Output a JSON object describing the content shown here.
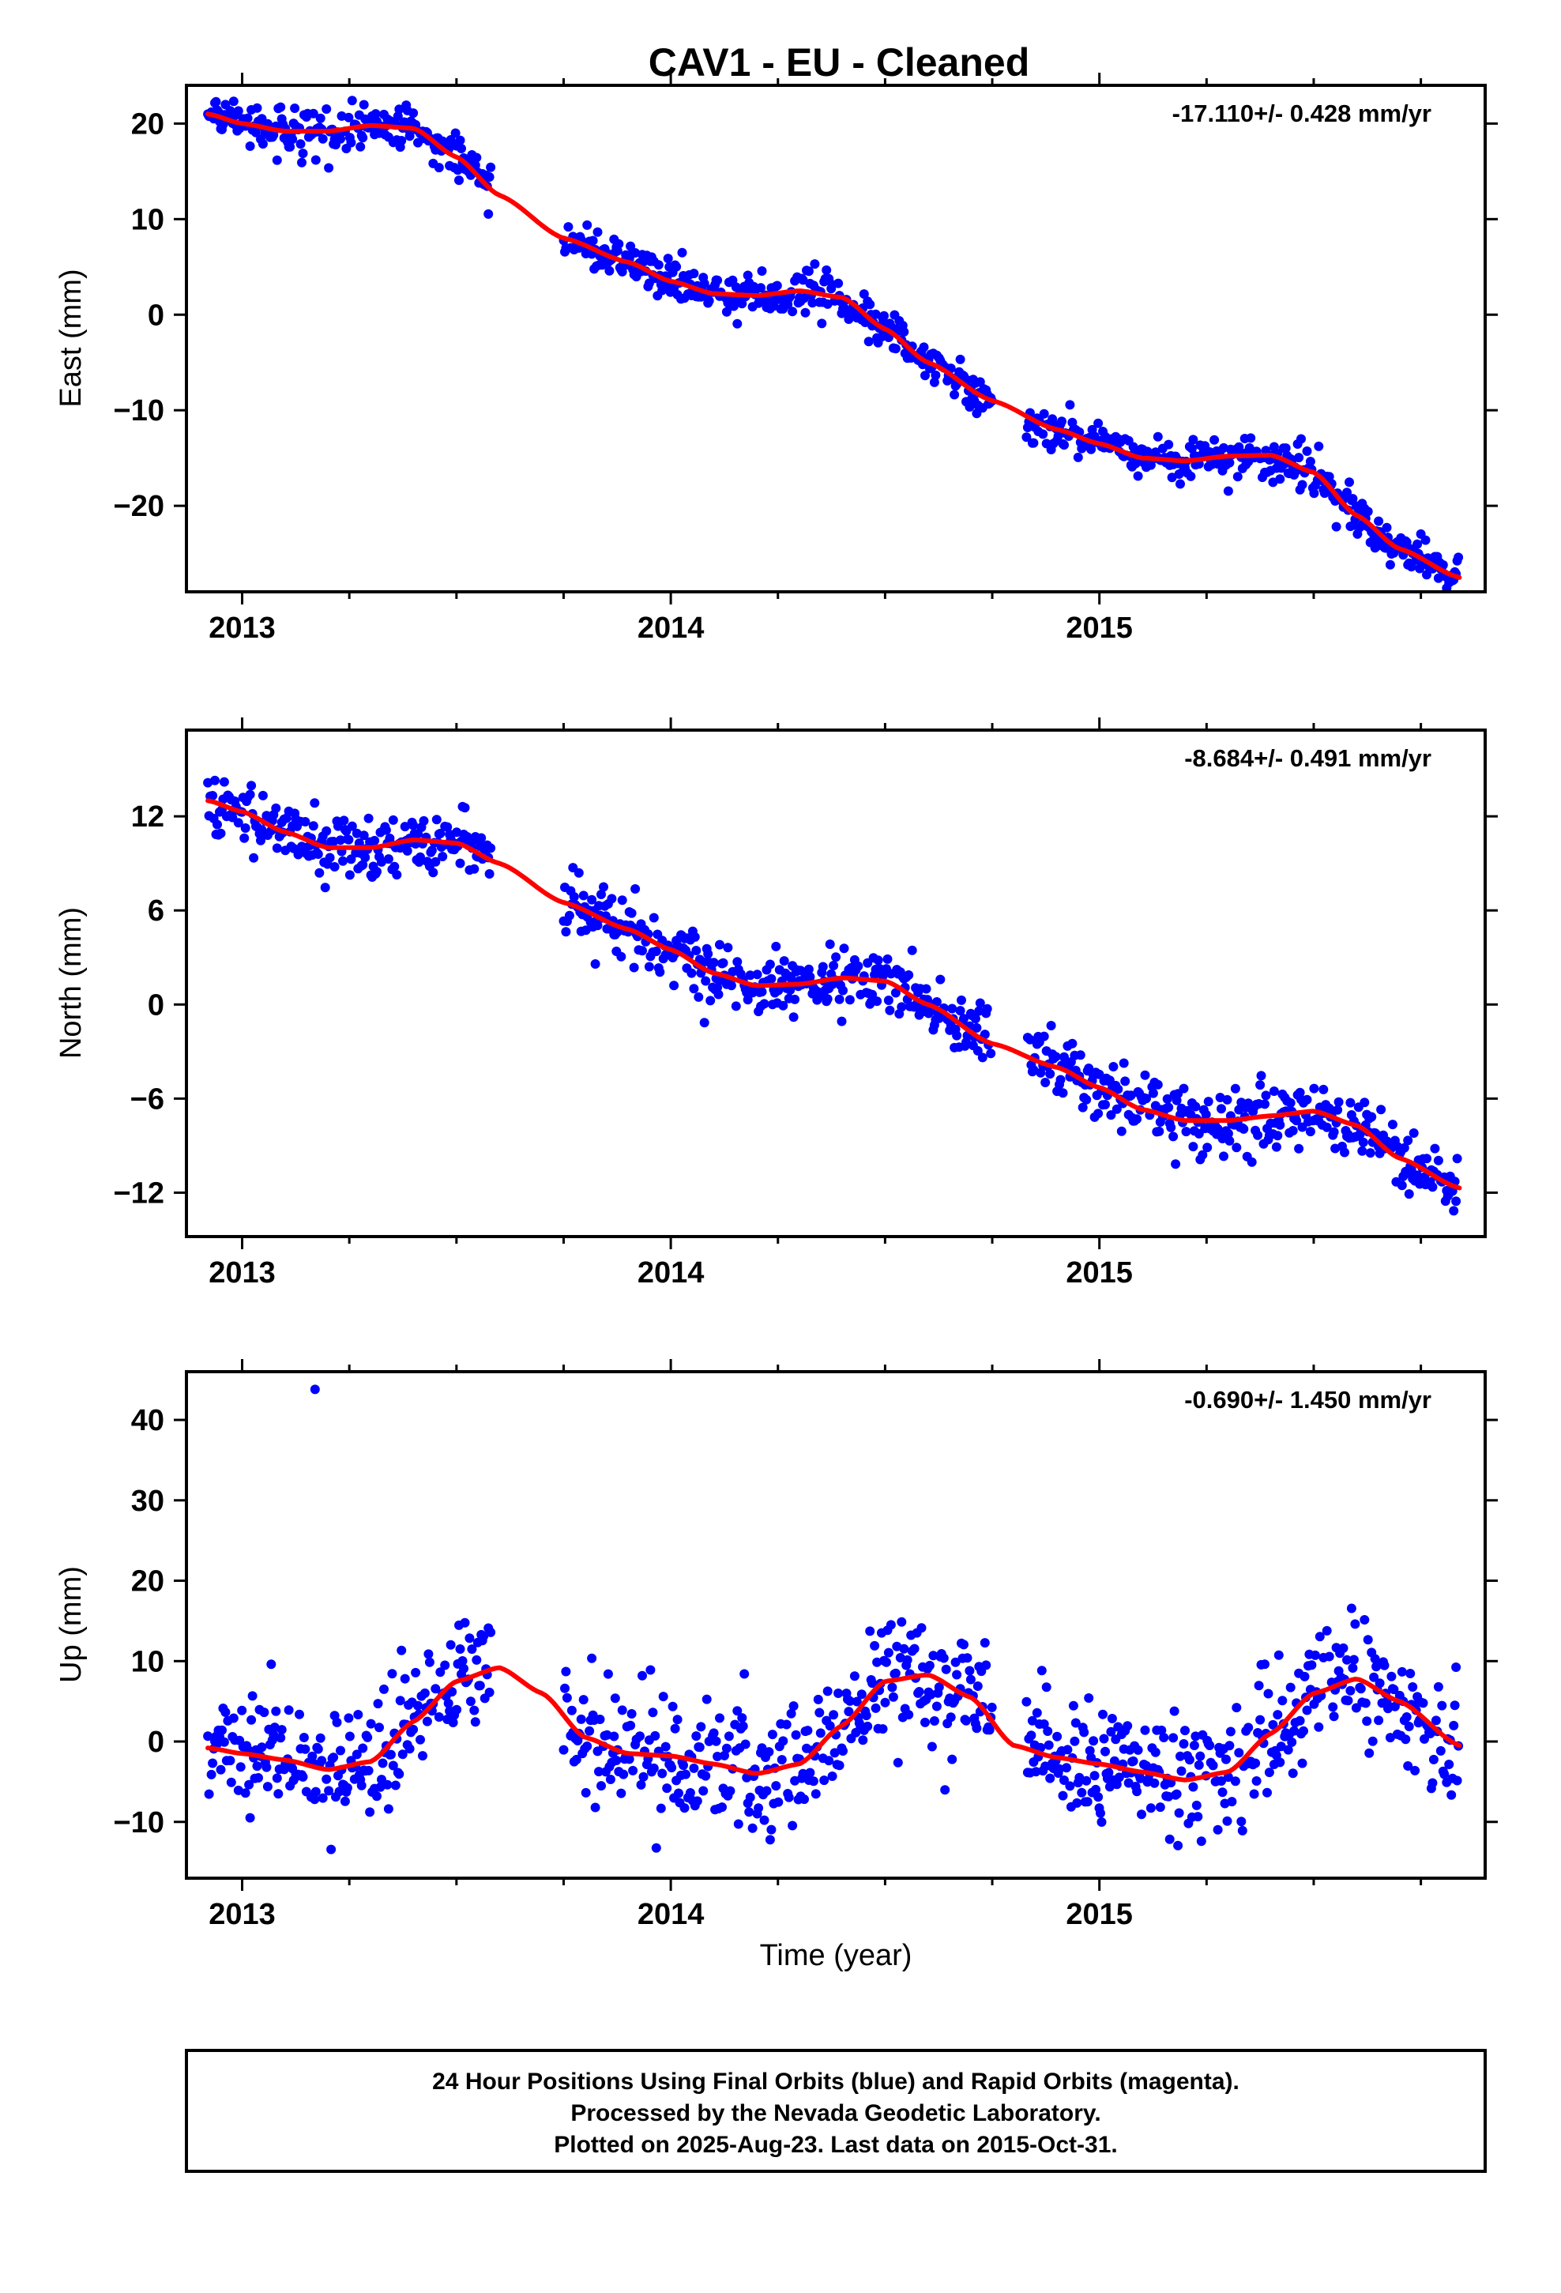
{
  "title": "CAV1  - EU - Cleaned",
  "xlabel": "Time (year)",
  "colors": {
    "points": "#0000ff",
    "fit": "#ff0000",
    "frame": "#000000",
    "background": "#ffffff"
  },
  "caption": {
    "line1": "24 Hour Positions Using Final Orbits (blue) and Rapid Orbits (magenta).",
    "line2": "Processed by the Nevada Geodetic Laboratory.",
    "line3": "Plotted on 2025-Aug-23. Last data on 2015-Oct-31."
  },
  "chart_data": [
    {
      "type": "scatter",
      "component": "East",
      "ylabel": "East (mm)",
      "rate_text": "-17.110+/- 0.428 mm/yr",
      "xlim": [
        2012.87,
        2015.9
      ],
      "ylim": [
        -29,
        24
      ],
      "x_ticks": [
        2013,
        2014,
        2015
      ],
      "x_tick_labels": [
        "2013",
        "2014",
        "2015"
      ],
      "y_ticks": [
        -20,
        -10,
        0,
        10,
        20
      ],
      "y_tick_labels": [
        "−20",
        "−10",
        "0",
        "10",
        "20"
      ],
      "scatter_noise_mm": 1.1,
      "series": [
        {
          "kind": "points",
          "segments": [
            [
              2012.92,
              2013.58
            ],
            [
              2013.75,
              2014.75
            ],
            [
              2014.83,
              2015.84
            ]
          ]
        },
        {
          "kind": "fit_line",
          "x": [
            2012.92,
            2013.0,
            2013.1,
            2013.2,
            2013.3,
            2013.4,
            2013.5,
            2013.6,
            2013.75,
            2013.9,
            2014.0,
            2014.1,
            2014.2,
            2014.3,
            2014.4,
            2014.5,
            2014.6,
            2014.75,
            2014.9,
            2015.0,
            2015.1,
            2015.2,
            2015.3,
            2015.4,
            2015.5,
            2015.6,
            2015.7,
            2015.84
          ],
          "y": [
            21,
            20,
            19.2,
            19.2,
            19.8,
            19.5,
            16.5,
            12.5,
            8,
            5.5,
            3.5,
            2.2,
            2.0,
            2.5,
            1.8,
            -1.5,
            -5,
            -9,
            -12,
            -13.5,
            -15,
            -15.3,
            -14.8,
            -14.7,
            -16.5,
            -21,
            -24.5,
            -27.5
          ]
        }
      ]
    },
    {
      "type": "scatter",
      "component": "North",
      "ylabel": "North (mm)",
      "rate_text": "-8.684+/- 0.491 mm/yr",
      "xlim": [
        2012.87,
        2015.9
      ],
      "ylim": [
        -14.8,
        17.5
      ],
      "x_ticks": [
        2013,
        2014,
        2015
      ],
      "x_tick_labels": [
        "2013",
        "2014",
        "2015"
      ],
      "y_ticks": [
        -12,
        -6,
        0,
        6,
        12
      ],
      "y_tick_labels": [
        "−12",
        "−6",
        "0",
        "6",
        "12"
      ],
      "scatter_noise_mm": 1.0,
      "series": [
        {
          "kind": "points",
          "segments": [
            [
              2012.92,
              2013.58
            ],
            [
              2013.75,
              2014.75
            ],
            [
              2014.83,
              2015.84
            ]
          ]
        },
        {
          "kind": "fit_line",
          "x": [
            2012.92,
            2013.0,
            2013.1,
            2013.2,
            2013.3,
            2013.4,
            2013.5,
            2013.6,
            2013.75,
            2013.9,
            2014.0,
            2014.1,
            2014.2,
            2014.3,
            2014.4,
            2014.5,
            2014.6,
            2014.75,
            2014.9,
            2015.0,
            2015.1,
            2015.2,
            2015.3,
            2015.4,
            2015.5,
            2015.6,
            2015.7,
            2015.84
          ],
          "y": [
            13,
            12.3,
            11,
            10,
            10,
            10.5,
            10.3,
            9,
            6.5,
            4.8,
            3.5,
            2,
            1.2,
            1.3,
            1.7,
            1.5,
            0,
            -2.5,
            -4,
            -5.3,
            -6.7,
            -7.4,
            -7.4,
            -7.1,
            -6.8,
            -7.7,
            -9.8,
            -11.7
          ]
        }
      ]
    },
    {
      "type": "scatter",
      "component": "Up",
      "ylabel": "Up (mm)",
      "rate_text": "-0.690+/- 1.450 mm/yr",
      "xlim": [
        2012.87,
        2015.9
      ],
      "ylim": [
        -17,
        46
      ],
      "x_ticks": [
        2013,
        2014,
        2015
      ],
      "x_tick_labels": [
        "2013",
        "2014",
        "2015"
      ],
      "y_ticks": [
        -10,
        0,
        10,
        20,
        30,
        40
      ],
      "y_tick_labels": [
        "−10",
        "0",
        "10",
        "20",
        "30",
        "40"
      ],
      "scatter_noise_mm": 3.8,
      "outliers": [
        {
          "x": 2013.17,
          "y": 43.8
        }
      ],
      "series": [
        {
          "kind": "points",
          "segments": [
            [
              2012.92,
              2013.58
            ],
            [
              2013.75,
              2014.75
            ],
            [
              2014.83,
              2015.84
            ]
          ]
        },
        {
          "kind": "fit_line",
          "x": [
            2012.92,
            2013.0,
            2013.1,
            2013.2,
            2013.3,
            2013.4,
            2013.5,
            2013.6,
            2013.7,
            2013.8,
            2013.9,
            2014.0,
            2014.1,
            2014.2,
            2014.3,
            2014.4,
            2014.5,
            2014.6,
            2014.7,
            2014.8,
            2014.9,
            2015.0,
            2015.1,
            2015.2,
            2015.3,
            2015.4,
            2015.5,
            2015.6,
            2015.7,
            2015.84
          ],
          "y": [
            -0.8,
            -1.5,
            -2.3,
            -3.5,
            -2.5,
            2.5,
            7.5,
            9.2,
            6,
            0.5,
            -1.5,
            -1.8,
            -2.8,
            -4,
            -2.8,
            2,
            7.5,
            8.3,
            5.5,
            -0.5,
            -2,
            -2.8,
            -3.8,
            -4.8,
            -3.8,
            1,
            6,
            7.8,
            5,
            -0.5
          ]
        }
      ]
    }
  ]
}
